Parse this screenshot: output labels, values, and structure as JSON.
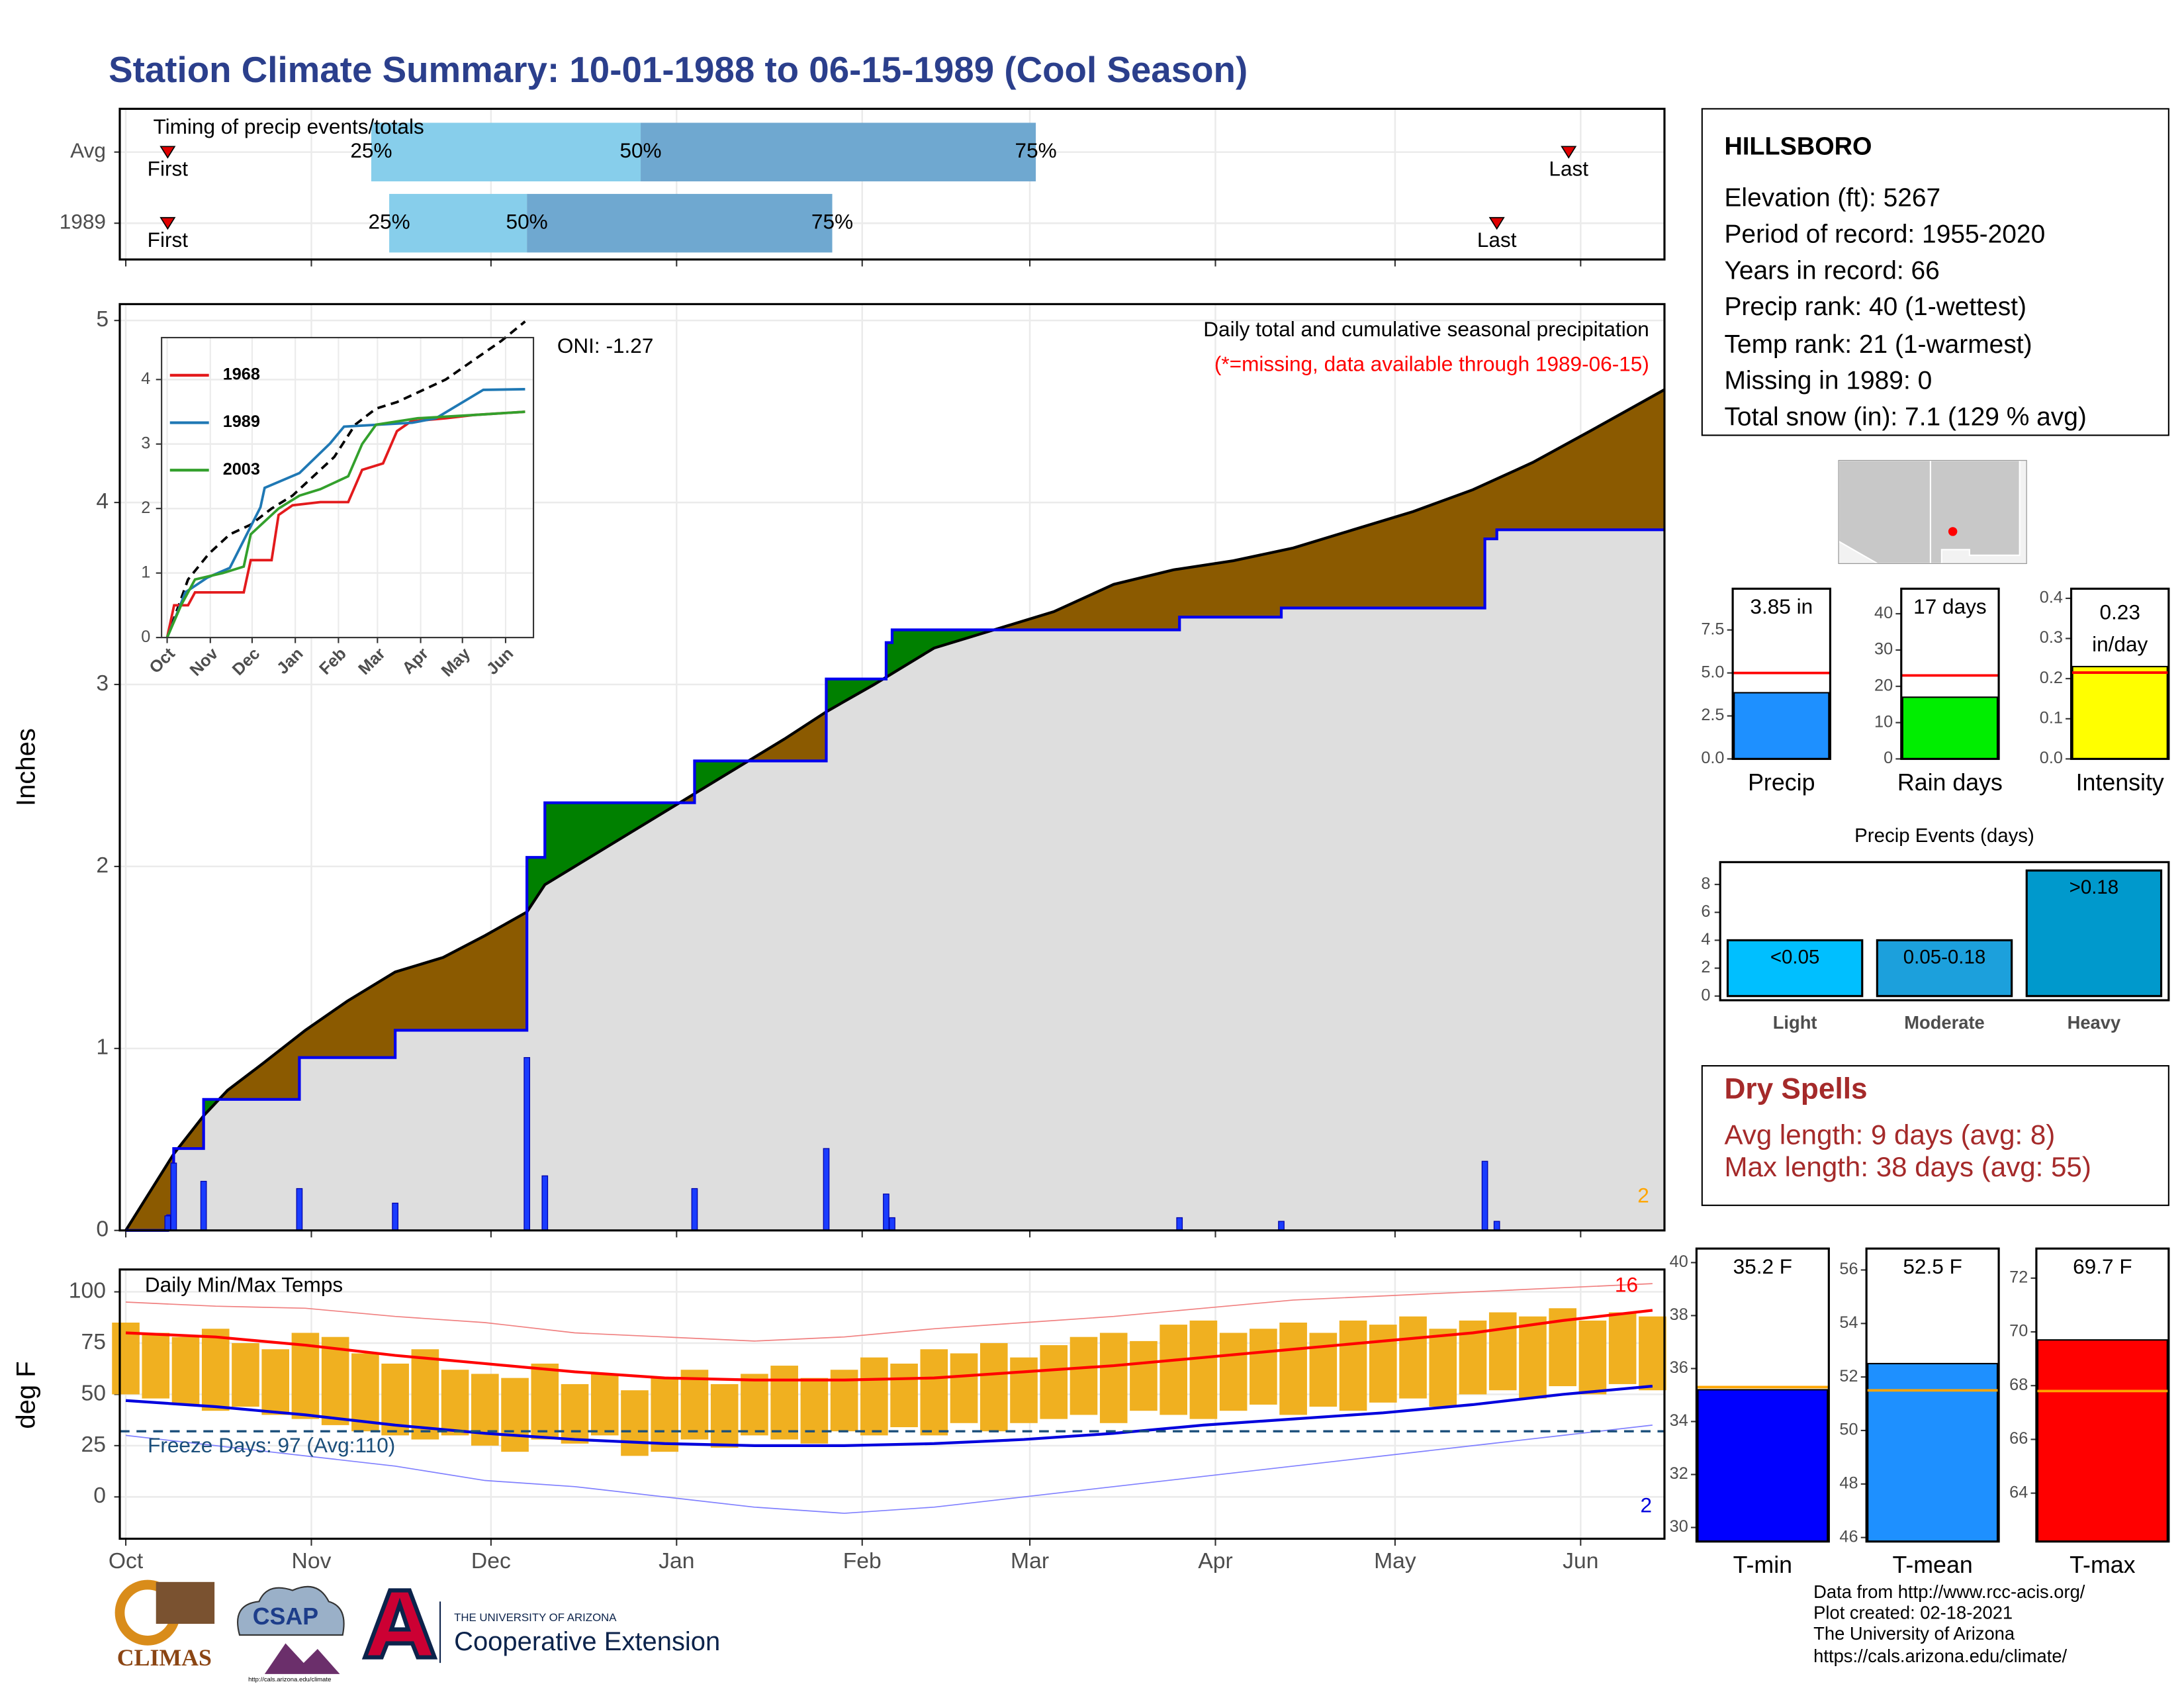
{
  "title": "Station Climate Summary: 10-01-1988 to 06-15-1989 (Cool Season)",
  "chart_data": [
    {
      "type": "timing",
      "title": "Timing of precip events/totals",
      "xlim": [
        -1,
        257
      ],
      "labels": {
        "first": "First",
        "last": "Last",
        "p25": "25%",
        "p50": "50%",
        "p75": "75%"
      },
      "colors": {
        "early": "#87ceeb",
        "late": "#6fa8d0",
        "marker": "#e00000"
      },
      "rows": [
        {
          "name": "Avg",
          "first": 7,
          "p25": 41,
          "p50": 86,
          "p75": 152,
          "last": 241
        },
        {
          "name": "1989",
          "first": 7,
          "p25": 44,
          "p50": 67,
          "p75": 118,
          "last": 229
        }
      ]
    },
    {
      "type": "cumulative-precip",
      "title": "Daily total and cumulative seasonal precipitation",
      "note": "(*=missing, data available through 1989-06-15)",
      "ylabel": "Inches",
      "annotation": "ONI: -1.27",
      "corner_label": 2,
      "xlim": [
        -1,
        257
      ],
      "ylim": [
        0,
        5.09
      ],
      "yticks": [
        0,
        1,
        2,
        3,
        4,
        5
      ],
      "colors": {
        "above": "#008000",
        "below": "#8b5a00",
        "base": "#dedede",
        "daily": "#1a3cff",
        "average": "#000000"
      },
      "daily": {
        "days": [
          7,
          8,
          13,
          29,
          45,
          67,
          70,
          95,
          117,
          127,
          128,
          176,
          193,
          227,
          229
        ],
        "values": [
          0.08,
          0.37,
          0.27,
          0.23,
          0.15,
          0.95,
          0.3,
          0.23,
          0.45,
          0.2,
          0.07,
          0.07,
          0.05,
          0.38,
          0.05
        ]
      },
      "average": {
        "days": [
          0,
          8,
          13,
          17,
          23,
          30,
          37,
          45,
          53,
          60,
          67,
          70,
          80,
          90,
          95,
          100,
          110,
          117,
          125,
          135,
          145,
          155,
          165,
          175,
          185,
          195,
          205,
          215,
          225,
          235,
          245,
          257
        ],
        "values": [
          0,
          0.42,
          0.63,
          0.77,
          0.92,
          1.1,
          1.26,
          1.42,
          1.5,
          1.62,
          1.75,
          1.9,
          2.1,
          2.3,
          2.4,
          2.5,
          2.7,
          2.85,
          3.0,
          3.2,
          3.3,
          3.4,
          3.55,
          3.63,
          3.68,
          3.75,
          3.85,
          3.95,
          4.07,
          4.22,
          4.4,
          4.62
        ]
      }
    },
    {
      "type": "line",
      "xlim": [
        -4,
        263
      ],
      "ylim": [
        0,
        4.65
      ],
      "yticks": [
        0,
        1,
        2,
        3,
        4
      ],
      "xticks": [
        {
          "value": 0,
          "label": "Oct"
        },
        {
          "value": 31,
          "label": "Nov"
        },
        {
          "value": 61,
          "label": "Dec"
        },
        {
          "value": 92,
          "label": "Jan"
        },
        {
          "value": 123,
          "label": "Feb"
        },
        {
          "value": 151,
          "label": "Mar"
        },
        {
          "value": 182,
          "label": "Apr"
        },
        {
          "value": 212,
          "label": "May"
        },
        {
          "value": 243,
          "label": "Jun"
        }
      ],
      "average": {
        "color": "#000000",
        "x": [
          0,
          15,
          30,
          45,
          60,
          75,
          90,
          105,
          120,
          135,
          150,
          165,
          180,
          200,
          220,
          240,
          257
        ],
        "values": [
          0,
          0.9,
          1.3,
          1.6,
          1.75,
          2.0,
          2.2,
          2.5,
          2.8,
          3.3,
          3.55,
          3.65,
          3.8,
          4.0,
          4.3,
          4.6,
          4.9
        ]
      },
      "series": [
        {
          "name": "1968",
          "color": "#e31a1c",
          "x": [
            0,
            5,
            15,
            20,
            55,
            60,
            75,
            80,
            90,
            110,
            130,
            140,
            155,
            165,
            175,
            200,
            220,
            257
          ],
          "values": [
            0,
            0.5,
            0.5,
            0.7,
            0.7,
            1.2,
            1.2,
            1.9,
            2.05,
            2.1,
            2.1,
            2.6,
            2.7,
            3.2,
            3.35,
            3.4,
            3.45,
            3.5
          ]
        },
        {
          "name": "1989",
          "color": "#1f78b4",
          "x": [
            0,
            8,
            13,
            29,
            45,
            67,
            70,
            95,
            117,
            127,
            176,
            193,
            227,
            257
          ],
          "values": [
            0,
            0.42,
            0.7,
            0.93,
            1.08,
            2.02,
            2.32,
            2.55,
            3.01,
            3.27,
            3.33,
            3.4,
            3.84,
            3.85
          ]
        },
        {
          "name": "2003",
          "color": "#33a02c",
          "x": [
            0,
            10,
            20,
            40,
            55,
            60,
            80,
            95,
            110,
            130,
            140,
            150,
            180,
            220,
            257
          ],
          "values": [
            0,
            0.5,
            0.9,
            1.0,
            1.1,
            1.6,
            2.0,
            2.2,
            2.3,
            2.5,
            3.0,
            3.3,
            3.4,
            3.45,
            3.5
          ]
        }
      ]
    },
    {
      "type": "temps",
      "title": "Daily Min/Max Temps",
      "ylabel": "deg F",
      "xlim": [
        -1,
        257
      ],
      "ylim": [
        -20.4,
        110.9
      ],
      "yticks": [
        0,
        25,
        50,
        75,
        100
      ],
      "xticks": [
        {
          "value": 0,
          "label": "Oct"
        },
        {
          "value": 31,
          "label": "Nov"
        },
        {
          "value": 61,
          "label": "Dec"
        },
        {
          "value": 92,
          "label": "Jan"
        },
        {
          "value": 123,
          "label": "Feb"
        },
        {
          "value": 151,
          "label": "Mar"
        },
        {
          "value": 182,
          "label": "Apr"
        },
        {
          "value": 212,
          "label": "May"
        },
        {
          "value": 243,
          "label": "Jun"
        }
      ],
      "days": [
        0,
        5,
        10,
        15,
        20,
        25,
        30,
        35,
        40,
        45,
        50,
        55,
        60,
        65,
        70,
        75,
        80,
        85,
        90,
        95,
        100,
        105,
        110,
        115,
        120,
        125,
        130,
        135,
        140,
        145,
        150,
        155,
        160,
        165,
        170,
        175,
        180,
        185,
        190,
        195,
        200,
        205,
        210,
        215,
        220,
        225,
        230,
        235,
        240,
        245,
        250,
        255
      ],
      "max": [
        85,
        80,
        78,
        82,
        75,
        72,
        80,
        78,
        70,
        65,
        72,
        62,
        60,
        58,
        65,
        55,
        60,
        52,
        58,
        62,
        55,
        60,
        64,
        58,
        62,
        68,
        65,
        72,
        70,
        75,
        68,
        74,
        78,
        80,
        76,
        84,
        86,
        80,
        82,
        85,
        80,
        86,
        84,
        88,
        82,
        86,
        90,
        88,
        92,
        86,
        90,
        88
      ],
      "min": [
        50,
        48,
        45,
        42,
        44,
        40,
        38,
        35,
        32,
        30,
        28,
        30,
        25,
        22,
        28,
        26,
        30,
        20,
        22,
        28,
        24,
        30,
        28,
        26,
        32,
        30,
        34,
        30,
        36,
        32,
        36,
        38,
        40,
        36,
        42,
        40,
        38,
        42,
        45,
        40,
        44,
        42,
        46,
        48,
        44,
        50,
        52,
        48,
        54,
        50,
        55,
        52
      ],
      "normals_x": [
        0,
        15,
        30,
        45,
        60,
        75,
        90,
        105,
        120,
        135,
        150,
        165,
        180,
        195,
        210,
        225,
        240,
        255
      ],
      "avg_max": [
        80,
        78,
        74,
        69,
        65,
        61,
        58,
        57,
        57,
        58,
        61,
        64,
        68,
        72,
        76,
        80,
        86,
        91
      ],
      "avg_min": [
        47,
        44,
        40,
        35,
        31,
        28,
        26,
        25,
        25,
        26,
        28,
        31,
        35,
        38,
        41,
        45,
        50,
        54
      ],
      "record_max": [
        95,
        93,
        92,
        88,
        85,
        80,
        78,
        76,
        78,
        82,
        85,
        88,
        92,
        96,
        98,
        100,
        102,
        104
      ],
      "record_min": [
        30,
        25,
        20,
        15,
        8,
        5,
        0,
        -5,
        -8,
        -5,
        0,
        5,
        10,
        15,
        20,
        25,
        30,
        35
      ],
      "freeze": {
        "value": 32,
        "label": "Freeze Days: 97 (Avg:110)"
      },
      "high_count": 16,
      "low_count": 2,
      "colors": {
        "bars": "#f0b020",
        "avg_max": "#ff0000",
        "avg_min": "#0000dd",
        "record_max": "#f08080",
        "record_min": "#8080ff",
        "freeze": "#1a4e7a"
      }
    },
    {
      "type": "summary-bar",
      "xlabel": "Precip",
      "values": [
        3.85
      ],
      "value_labels": [
        "3.85 in"
      ],
      "average": 5.0,
      "color": "#1e90ff",
      "average_color": "#ff0000",
      "ylim": [
        0,
        9.9
      ],
      "yticks": [
        {
          "value": 0,
          "label": "0.0"
        },
        {
          "value": 2.5,
          "label": "2.5"
        },
        {
          "value": 5,
          "label": "5.0"
        },
        {
          "value": 7.5,
          "label": "7.5"
        }
      ]
    },
    {
      "type": "summary-bar",
      "xlabel": "Rain days",
      "values": [
        17
      ],
      "value_labels": [
        "17 days"
      ],
      "average": 23,
      "color": "#00ee00",
      "average_color": "#ff0000",
      "ylim": [
        0,
        46.9
      ],
      "yticks": [
        0,
        10,
        20,
        30,
        40
      ]
    },
    {
      "type": "summary-bar",
      "xlabel": "Intensity",
      "values": [
        0.23
      ],
      "value_labels": [
        "0.23"
      ],
      "unit": "in/day",
      "average": 0.215,
      "color": "#ffff00",
      "average_color": "#ff0000",
      "ylim": [
        0,
        0.424
      ],
      "yticks": [
        {
          "value": 0,
          "label": "0.0"
        },
        0.1,
        0.2,
        0.3,
        0.4
      ]
    },
    {
      "type": "bar",
      "title": "Precip Events (days)",
      "categories": [
        "Light",
        "Moderate",
        "Heavy"
      ],
      "ranges": [
        "<0.05",
        "0.05-0.18",
        ">0.18"
      ],
      "values": [
        4,
        4,
        9
      ],
      "colors": [
        "#00bfff",
        "#1ca0dc",
        "#0099cc"
      ],
      "ylim": [
        -0.3,
        9.6
      ],
      "yticks": [
        0,
        2,
        4,
        6,
        8
      ]
    },
    {
      "type": "summary-bar",
      "xlabel": "T-min",
      "values": [
        35.2
      ],
      "value_labels": [
        "35.2 F"
      ],
      "average": 35.3,
      "color": "#0000ff",
      "average_color": "#ffa500",
      "ylim": [
        29.47,
        40.53
      ],
      "yticks": [
        30,
        32,
        34,
        36,
        38,
        40
      ]
    },
    {
      "type": "summary-bar",
      "xlabel": "T-mean",
      "values": [
        52.5
      ],
      "value_labels": [
        "52.5 F"
      ],
      "average": 51.5,
      "color": "#1e90ff",
      "average_color": "#ffa500",
      "ylim": [
        45.85,
        56.8
      ],
      "yticks": [
        46,
        48,
        50,
        52,
        54,
        56
      ]
    },
    {
      "type": "summary-bar",
      "xlabel": "T-max",
      "values": [
        69.7
      ],
      "value_labels": [
        "69.7 F"
      ],
      "average": 67.8,
      "color": "#ff0000",
      "average_color": "#ffa500",
      "ylim": [
        62.2,
        73.1
      ],
      "yticks": [
        64,
        66,
        68,
        70,
        72
      ]
    }
  ],
  "station": {
    "name": "HILLSBORO",
    "lines": [
      "Elevation (ft): 5267",
      "Period of record: 1955-2020",
      "Years in record: 66",
      "Precip rank: 40 (1-wettest)",
      "Temp rank: 21 (1-warmest)",
      "Missing in 1989: 0",
      "Total snow (in): 7.1 (129 % avg)"
    ]
  },
  "dry_spells": {
    "title": "Dry Spells",
    "lines": [
      "Avg length: 9 days (avg: 8)",
      "Max length: 38 days (avg: 55)"
    ]
  },
  "footer": [
    "Data from http://www.rcc-acis.org/",
    "Plot created: 02-18-2021",
    "The University of Arizona",
    "https://cals.arizona.edu/climate/"
  ],
  "logos": {
    "climas": "CLIMAS",
    "csap": "CSAP",
    "csap_url": "http://cals.arizona.edu/climate",
    "university": "THE UNIVERSITY OF ARIZONA",
    "extension": "Cooperative Extension"
  }
}
